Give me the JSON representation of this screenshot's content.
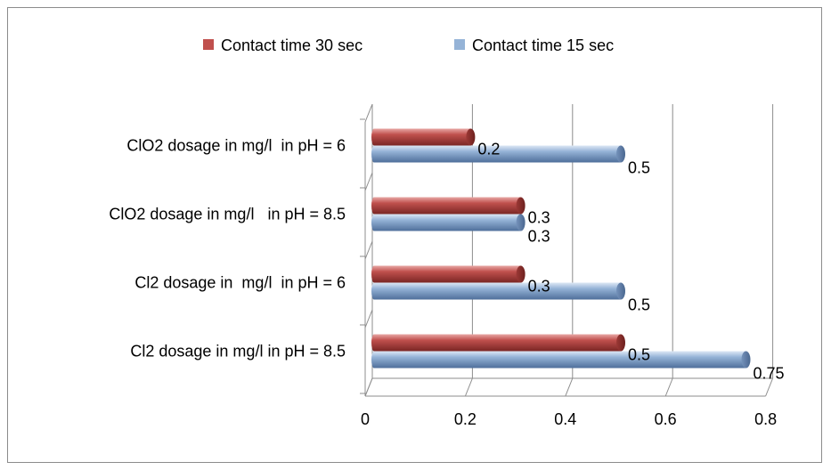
{
  "chart_data": {
    "type": "bar",
    "orientation": "horizontal",
    "categories": [
      "Cl2 dosage in mg/l in pH = 8.5",
      "Cl2 dosage in  mg/l  in pH = 6",
      "ClO2 dosage in mg/l   in pH = 8.5",
      "ClO2 dosage in mg/l  in pH = 6"
    ],
    "series": [
      {
        "name": "Contact time 30 sec",
        "values": [
          0.5,
          0.3,
          0.3,
          0.2
        ],
        "color": "#c0504d"
      },
      {
        "name": "Contact time 15 sec",
        "values": [
          0.75,
          0.5,
          0.3,
          0.5
        ],
        "color": "#95b3d7"
      }
    ],
    "data_labels": {
      "Contact time 30 sec": [
        "0.5",
        "0.3",
        "0.3",
        "0.2"
      ],
      "Contact time 15 sec": [
        "0.75",
        "0.5",
        "0.3",
        "0.5"
      ]
    },
    "xticks": [
      "0",
      "0.2",
      "0.4",
      "0.6",
      "0.8"
    ],
    "xlim": [
      0,
      0.8
    ],
    "grid": true,
    "legend_position": "top",
    "style": "3d-cylinder"
  }
}
